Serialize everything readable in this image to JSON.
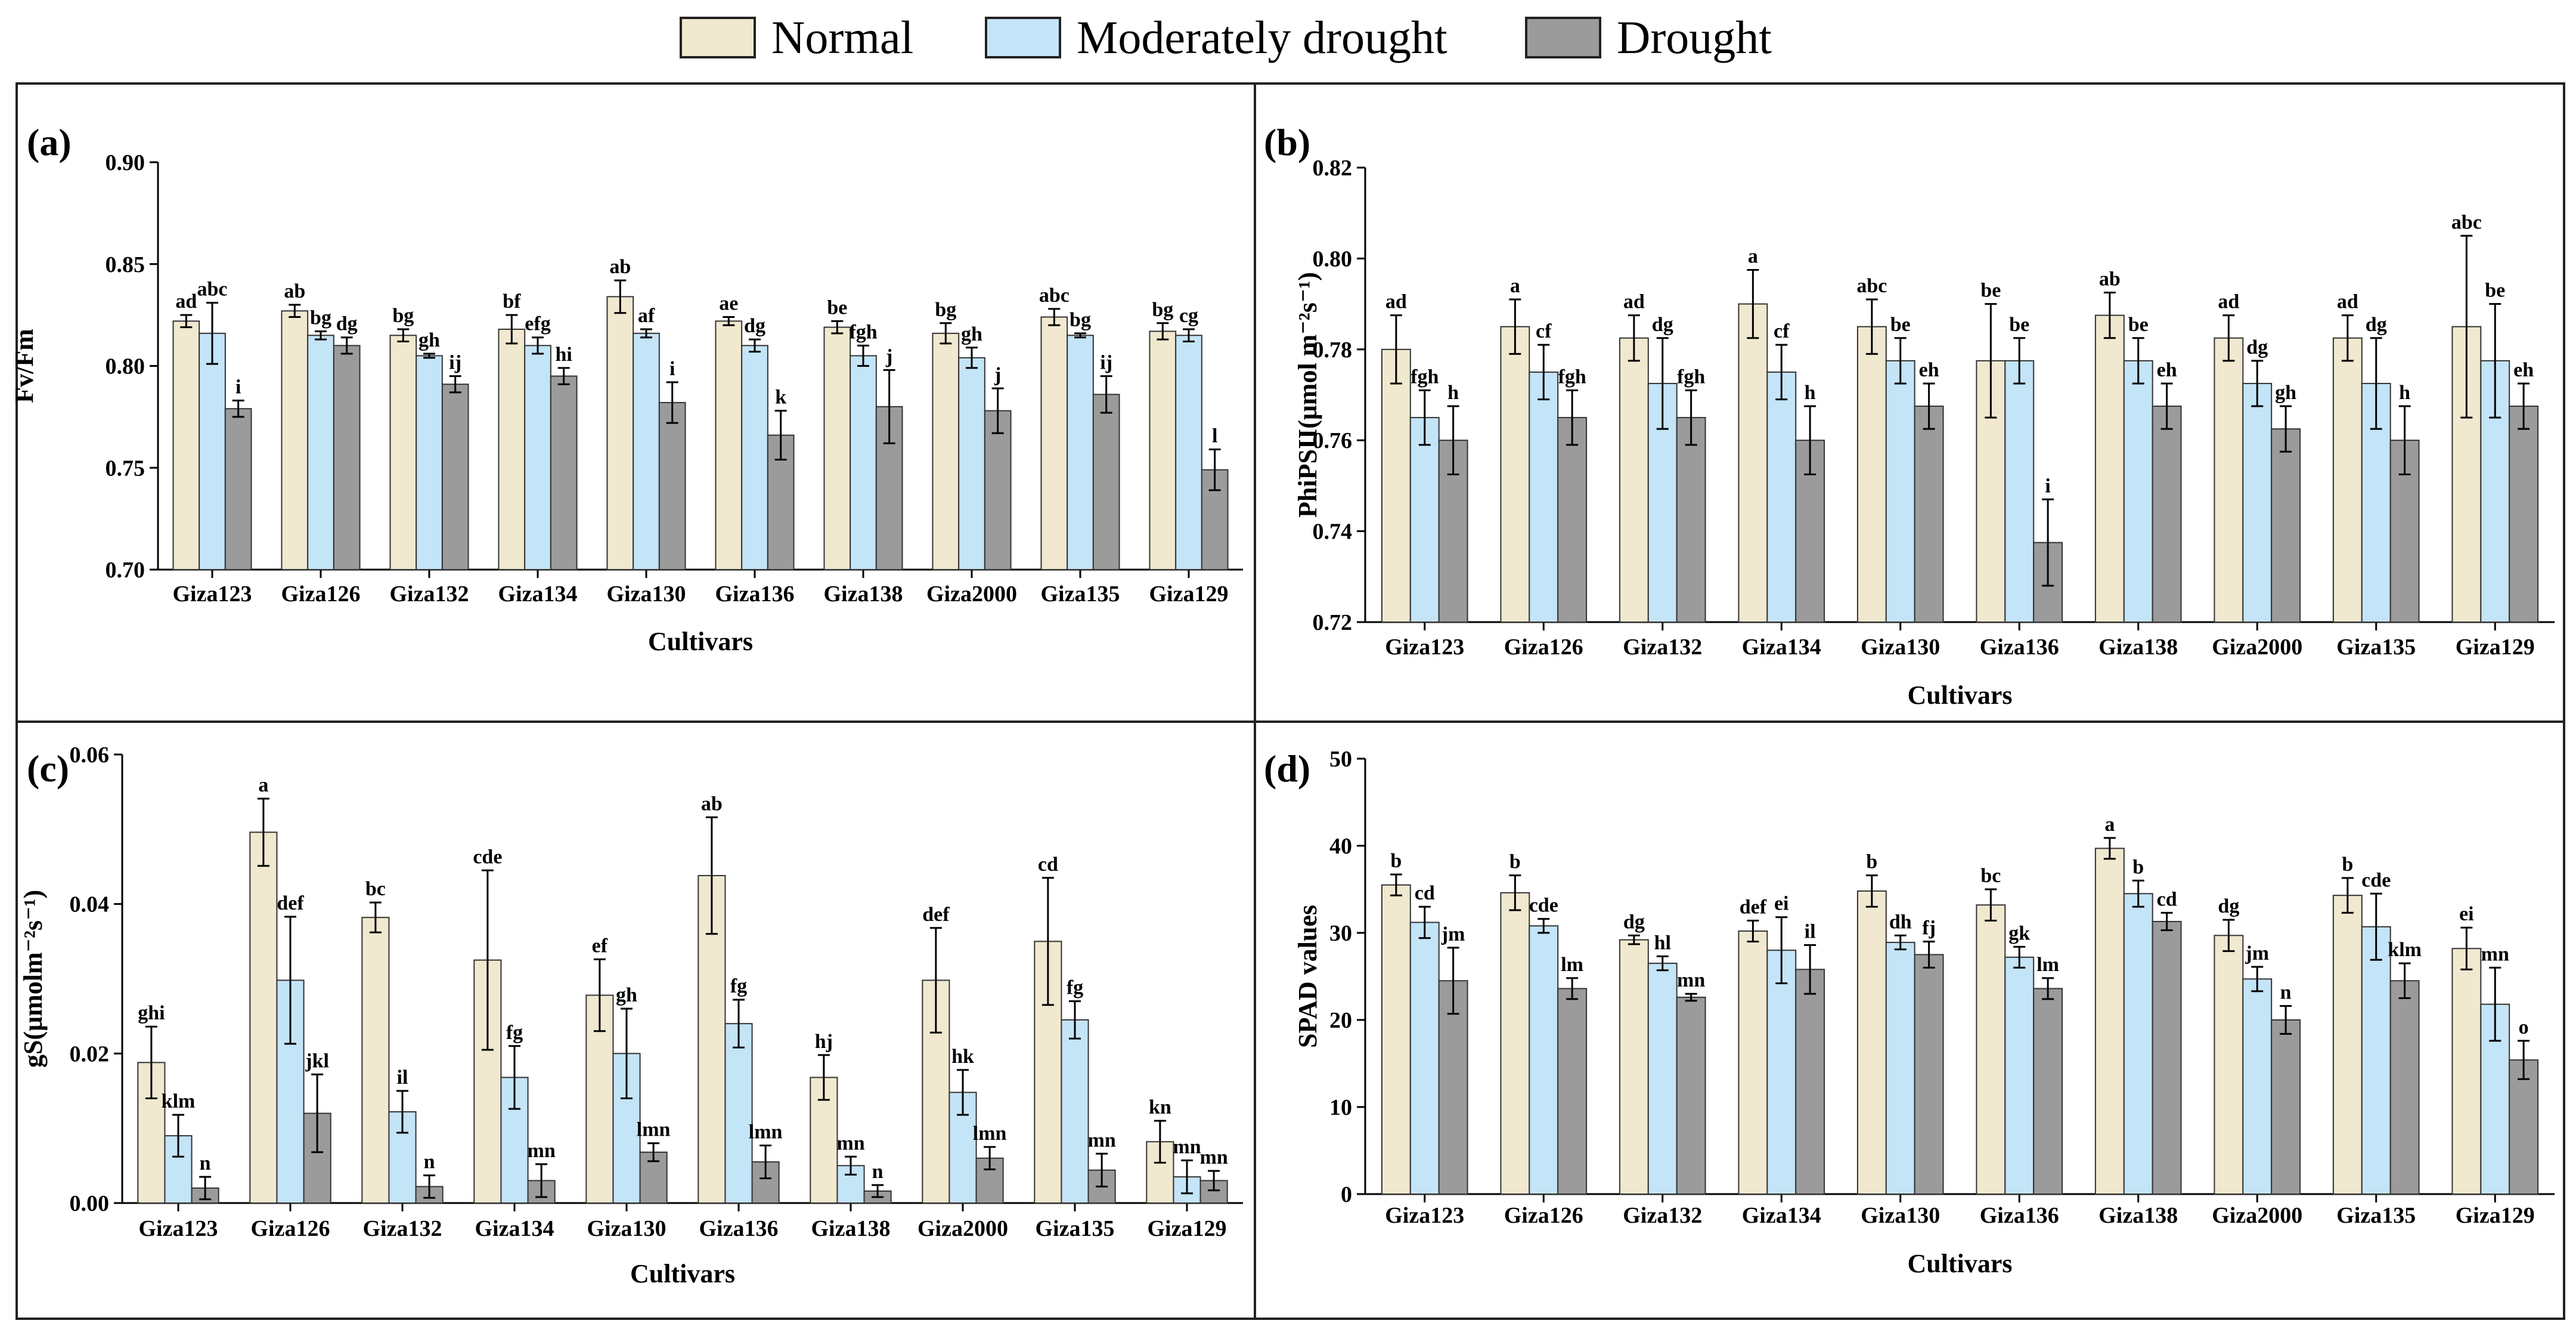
{
  "legend": {
    "items": [
      {
        "name": "Normal",
        "color": "#f0e8cf"
      },
      {
        "name": "Moderately drought",
        "color": "#c4e4f7"
      },
      {
        "name": "Drought",
        "color": "#9b9b9b"
      }
    ]
  },
  "chart_data": [
    {
      "id": "a",
      "panel_label": "(a)",
      "type": "bar",
      "categories": [
        "Giza123",
        "Giza126",
        "Giza132",
        "Giza134",
        "Giza130",
        "Giza136",
        "Giza138",
        "Giza2000",
        "Giza135",
        "Giza129"
      ],
      "xlabel": "Cultivars",
      "ylabel": "Fv/Fm",
      "ylim": [
        0.7,
        0.9
      ],
      "ticks": [
        "0.70",
        "0.75",
        "0.80",
        "0.85",
        "0.90"
      ],
      "series": [
        {
          "name": "Normal",
          "values": [
            0.822,
            0.827,
            0.815,
            0.818,
            0.834,
            0.822,
            0.819,
            0.816,
            0.824,
            0.817
          ],
          "errors": [
            0.003,
            0.003,
            0.003,
            0.007,
            0.008,
            0.002,
            0.003,
            0.005,
            0.004,
            0.004
          ],
          "letters": [
            "ad",
            "ab",
            "bg",
            "bf",
            "ab",
            "ae",
            "be",
            "bg",
            "abc",
            "bg"
          ]
        },
        {
          "name": "Moderately drought",
          "values": [
            0.816,
            0.815,
            0.805,
            0.81,
            0.816,
            0.81,
            0.805,
            0.804,
            0.815,
            0.815
          ],
          "errors": [
            0.015,
            0.002,
            0.001,
            0.004,
            0.002,
            0.003,
            0.005,
            0.005,
            0.001,
            0.003
          ],
          "letters": [
            "abc",
            "bg",
            "gh",
            "efg",
            "af",
            "dg",
            "fgh",
            "gh",
            "bg",
            "cg"
          ]
        },
        {
          "name": "Drought",
          "values": [
            0.779,
            0.81,
            0.791,
            0.795,
            0.782,
            0.766,
            0.78,
            0.778,
            0.786,
            0.749
          ],
          "errors": [
            0.004,
            0.004,
            0.004,
            0.004,
            0.01,
            0.012,
            0.018,
            0.011,
            0.009,
            0.01
          ],
          "letters": [
            "i",
            "dg",
            "ij",
            "hi",
            "i",
            "k",
            "j",
            "j",
            "ij",
            "l"
          ]
        }
      ]
    },
    {
      "id": "b",
      "panel_label": "(b)",
      "type": "bar",
      "categories": [
        "Giza123",
        "Giza126",
        "Giza132",
        "Giza134",
        "Giza130",
        "Giza136",
        "Giza138",
        "Giza2000",
        "Giza135",
        "Giza129"
      ],
      "xlabel": "Cultivars",
      "ylabel": "PhiPSII(μmol m⁻²s⁻¹)",
      "ylim": [
        0.72,
        0.82
      ],
      "ticks": [
        "0.72",
        "0.74",
        "0.76",
        "0.78",
        "0.80",
        "0.82"
      ],
      "series": [
        {
          "name": "Normal",
          "values": [
            0.78,
            0.785,
            0.7825,
            0.79,
            0.785,
            0.7775,
            0.7875,
            0.7825,
            0.7825,
            0.785
          ],
          "errors": [
            0.0075,
            0.006,
            0.005,
            0.0075,
            0.006,
            0.0125,
            0.005,
            0.005,
            0.005,
            0.02
          ],
          "letters": [
            "ad",
            "a",
            "ad",
            "a",
            "abc",
            "be",
            "ab",
            "ad",
            "ad",
            "abc"
          ]
        },
        {
          "name": "Moderately drought",
          "values": [
            0.765,
            0.775,
            0.7725,
            0.775,
            0.7775,
            0.7775,
            0.7775,
            0.7725,
            0.7725,
            0.7775
          ],
          "errors": [
            0.006,
            0.006,
            0.01,
            0.006,
            0.005,
            0.005,
            0.005,
            0.005,
            0.01,
            0.0125
          ],
          "letters": [
            "fgh",
            "cf",
            "dg",
            "cf",
            "be",
            "be",
            "be",
            "dg",
            "dg",
            "be"
          ]
        },
        {
          "name": "Drought",
          "values": [
            0.76,
            0.765,
            0.765,
            0.76,
            0.7675,
            0.7375,
            0.7675,
            0.7625,
            0.76,
            0.7675
          ],
          "errors": [
            0.0075,
            0.006,
            0.006,
            0.0075,
            0.005,
            0.0095,
            0.005,
            0.005,
            0.0075,
            0.005
          ],
          "letters": [
            "h",
            "fgh",
            "fgh",
            "h",
            "eh",
            "i",
            "eh",
            "gh",
            "h",
            "eh"
          ]
        }
      ]
    },
    {
      "id": "c",
      "panel_label": "(c)",
      "type": "bar",
      "categories": [
        "Giza123",
        "Giza126",
        "Giza132",
        "Giza134",
        "Giza130",
        "Giza136",
        "Giza138",
        "Giza2000",
        "Giza135",
        "Giza129"
      ],
      "xlabel": "Cultivars",
      "ylabel": "gS(μmolm⁻²s⁻¹)",
      "ylim": [
        0,
        0.06
      ],
      "ticks": [
        "0.00",
        "0.02",
        "0.04",
        "0.06"
      ],
      "series": [
        {
          "name": "Normal",
          "values": [
            0.0188,
            0.0496,
            0.0382,
            0.0325,
            0.0278,
            0.0438,
            0.0168,
            0.0298,
            0.035,
            0.0082
          ],
          "errors": [
            0.0048,
            0.0045,
            0.002,
            0.012,
            0.0048,
            0.0078,
            0.003,
            0.007,
            0.0085,
            0.0028
          ],
          "letters": [
            "ghi",
            "a",
            "bc",
            "cde",
            "ef",
            "ab",
            "hj",
            "def",
            "cd",
            "kn"
          ]
        },
        {
          "name": "Moderately drought",
          "values": [
            0.009,
            0.0298,
            0.0122,
            0.0168,
            0.02,
            0.024,
            0.005,
            0.0148,
            0.0245,
            0.0035
          ],
          "errors": [
            0.0028,
            0.0085,
            0.0028,
            0.0042,
            0.006,
            0.0032,
            0.0012,
            0.003,
            0.0025,
            0.0022
          ],
          "letters": [
            "klm",
            "def",
            "il",
            "fg",
            "gh",
            "fg",
            "mn",
            "hk",
            "fg",
            "mn"
          ]
        },
        {
          "name": "Drought",
          "values": [
            0.002,
            0.012,
            0.0022,
            0.003,
            0.0068,
            0.0055,
            0.0016,
            0.006,
            0.0044,
            0.003
          ],
          "errors": [
            0.0015,
            0.0052,
            0.0015,
            0.0022,
            0.0012,
            0.0022,
            0.0008,
            0.0015,
            0.0022,
            0.0013
          ],
          "letters": [
            "n",
            "jkl",
            "n",
            "mn",
            "lmn",
            "lmn",
            "n",
            "lmn",
            "mn",
            "mn"
          ]
        }
      ]
    },
    {
      "id": "d",
      "panel_label": "(d)",
      "type": "bar",
      "categories": [
        "Giza123",
        "Giza126",
        "Giza132",
        "Giza134",
        "Giza130",
        "Giza136",
        "Giza138",
        "Giza2000",
        "Giza135",
        "Giza129"
      ],
      "xlabel": "Cultivars",
      "ylabel": "SPAD values",
      "ylim": [
        0,
        50
      ],
      "ticks": [
        "0",
        "10",
        "20",
        "30",
        "40",
        "50"
      ],
      "series": [
        {
          "name": "Normal",
          "values": [
            35.5,
            34.6,
            29.2,
            30.2,
            34.8,
            33.2,
            39.7,
            29.7,
            34.3,
            28.2
          ],
          "errors": [
            1.2,
            2.0,
            0.5,
            1.2,
            1.8,
            1.8,
            1.2,
            1.8,
            2.0,
            2.4
          ],
          "letters": [
            "b",
            "b",
            "dg",
            "def",
            "b",
            "bc",
            "a",
            "dg",
            "b",
            "ei"
          ]
        },
        {
          "name": "Moderately drought",
          "values": [
            31.2,
            30.8,
            26.5,
            28.0,
            28.9,
            27.2,
            34.5,
            24.7,
            30.7,
            21.8
          ],
          "errors": [
            1.8,
            0.8,
            0.8,
            3.8,
            0.8,
            1.2,
            1.5,
            1.4,
            3.8,
            4.2
          ],
          "letters": [
            "cd",
            "cde",
            "hl",
            "ei",
            "dh",
            "gk",
            "b",
            "jm",
            "cde",
            "mn"
          ]
        },
        {
          "name": "Drought",
          "values": [
            24.5,
            23.6,
            22.6,
            25.8,
            27.5,
            23.6,
            31.3,
            20.0,
            24.5,
            15.4
          ],
          "errors": [
            3.8,
            1.2,
            0.4,
            2.8,
            1.5,
            1.2,
            1.0,
            1.6,
            2.0,
            2.2
          ],
          "letters": [
            "jm",
            "lm",
            "mn",
            "il",
            "fj",
            "lm",
            "cd",
            "n",
            "klm",
            "o"
          ]
        }
      ]
    }
  ]
}
